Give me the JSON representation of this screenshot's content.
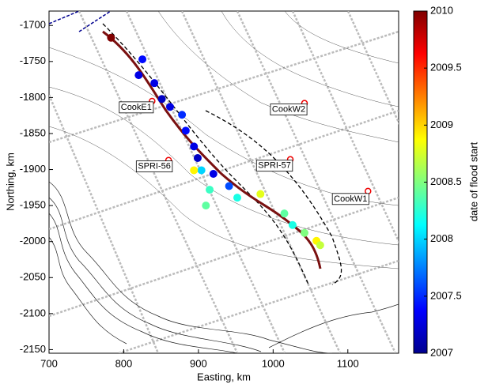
{
  "chart_data": {
    "type": "scatter",
    "xlabel": "Easting, km",
    "ylabel": "Northing, km",
    "xlim": [
      700,
      1168
    ],
    "ylim": [
      -2155,
      -1680
    ],
    "xticks": [
      700,
      800,
      900,
      1000,
      1100
    ],
    "yticks": [
      -1700,
      -1750,
      -1800,
      -1850,
      -1900,
      -1950,
      -2000,
      -2050,
      -2100,
      -2150
    ],
    "colormap": "jet",
    "colorbar": {
      "label": "date of flood start",
      "lim": [
        2007,
        2010
      ],
      "ticks": [
        2007,
        2007.5,
        2008,
        2008.5,
        2009,
        2009.5,
        2010
      ]
    },
    "points": {
      "x": [
        825,
        820,
        841,
        851,
        862,
        878,
        883,
        894,
        899,
        904,
        920,
        915,
        941,
        952,
        910,
        983,
        894,
        1026,
        1042,
        1058,
        1063,
        1015,
        783
      ],
      "y": [
        -1747,
        -1769,
        -1780,
        -1802,
        -1813,
        -1824,
        -1846,
        -1868,
        -1884,
        -1901,
        -1906,
        -1928,
        -1923,
        -1939,
        -1950,
        -1934,
        -1901,
        -1977,
        -1988,
        -1999,
        -2005,
        -1961,
        -1717
      ],
      "values": [
        2007.4,
        2007.3,
        2007.3,
        2007.2,
        2007.3,
        2007.5,
        2007.4,
        2007.3,
        2007.2,
        2008.0,
        2007.3,
        2008.3,
        2007.6,
        2008.2,
        2008.4,
        2008.8,
        2008.9,
        2008.2,
        2008.5,
        2008.9,
        2008.7,
        2008.4,
        2010
      ]
    },
    "annotations": [
      {
        "text": "CookE1",
        "x": 838,
        "y": -1805
      },
      {
        "text": "CookW2",
        "x": 1042,
        "y": -1808
      },
      {
        "text": "SPRI-56",
        "x": 860,
        "y": -1887
      },
      {
        "text": "SPRI-57",
        "x": 1023,
        "y": -1886
      },
      {
        "text": "CookW1",
        "x": 1127,
        "y": -1930
      }
    ]
  }
}
